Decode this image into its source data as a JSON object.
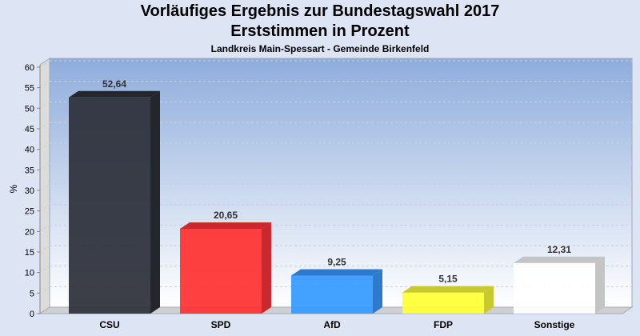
{
  "chart_data": {
    "type": "bar",
    "title": "Vorläufiges Ergebnis zur Bundestagswahl 2017",
    "subtitle": "Erststimmen in Prozent",
    "subsubtitle": "Landkreis Main-Spessart - Gemeinde Birkenfeld",
    "xlabel": "",
    "ylabel": "%",
    "ylim": [
      0,
      60
    ],
    "yticks": [
      0,
      5,
      10,
      15,
      20,
      25,
      30,
      35,
      40,
      45,
      50,
      55,
      60
    ],
    "grid": true,
    "categories": [
      "CSU",
      "SPD",
      "AfD",
      "FDP",
      "Sonstige"
    ],
    "values": [
      52.64,
      20.65,
      9.25,
      5.15,
      12.31
    ],
    "value_labels": [
      "52,64",
      "20,65",
      "9,25",
      "5,15",
      "12,31"
    ],
    "colors": [
      "#2b2f38",
      "#ff3030",
      "#3399ff",
      "#ffff33",
      "#ffffff"
    ],
    "side_colors": [
      "#23262d",
      "#c8282e",
      "#2d7acc",
      "#c8c830",
      "#c4c4c4"
    ]
  }
}
